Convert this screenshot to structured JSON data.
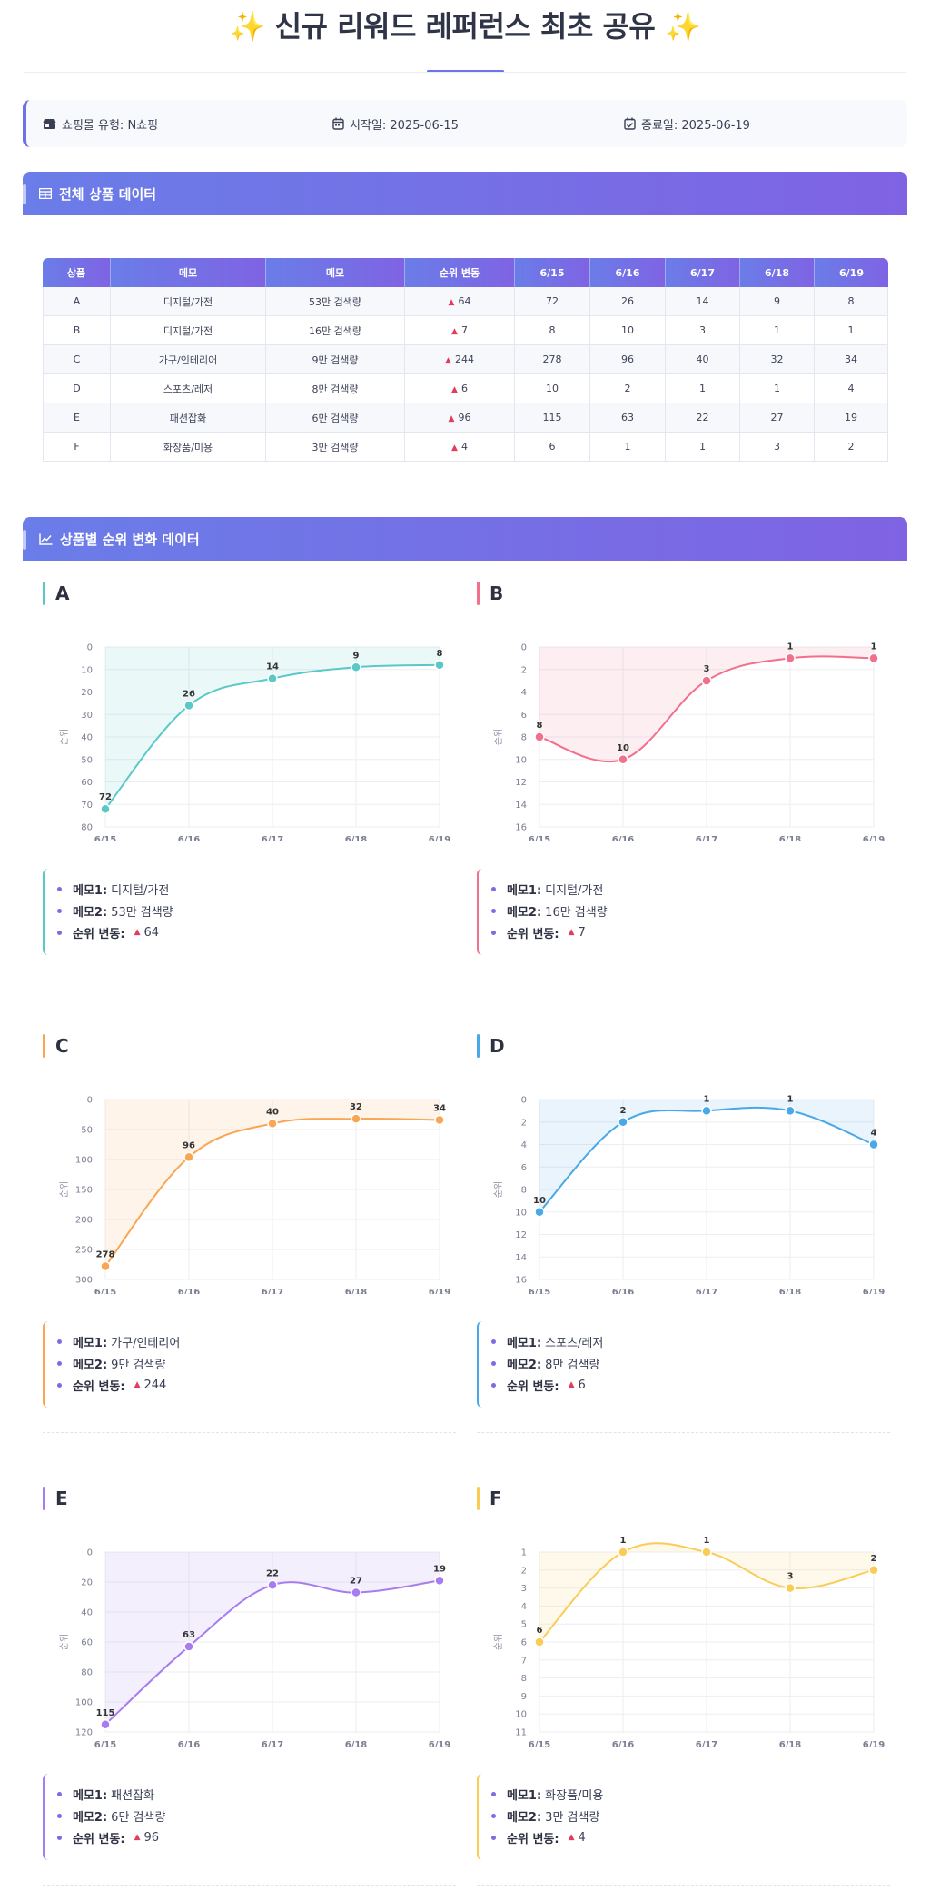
{
  "title": {
    "text": "신규 리워드 레퍼런스 최초 공유",
    "sparkle": "✨"
  },
  "info": {
    "mall_label": "쇼핑몰 유형: N쇼핑",
    "start_label": "시작일: 2025-06-15",
    "end_label": "종료일: 2025-06-19",
    "icons": [
      "store-icon",
      "calendar-icon",
      "calendar-check-icon"
    ]
  },
  "sections": {
    "table_title": "전체 상품 데이터",
    "charts_title": "상품별 순위 변화 데이터"
  },
  "table": {
    "headers": [
      "상품",
      "메모",
      "메모",
      "순위 변동",
      "6/15",
      "6/16",
      "6/17",
      "6/18",
      "6/19"
    ],
    "rows": [
      [
        "A",
        "디지털/가전",
        "53만 검색량",
        "64",
        "72",
        "26",
        "14",
        "9",
        "8"
      ],
      [
        "B",
        "디지털/가전",
        "16만 검색량",
        "7",
        "8",
        "10",
        "3",
        "1",
        "1"
      ],
      [
        "C",
        "가구/인테리어",
        "9만 검색량",
        "244",
        "278",
        "96",
        "40",
        "32",
        "34"
      ],
      [
        "D",
        "스포츠/레저",
        "8만 검색량",
        "6",
        "10",
        "2",
        "1",
        "1",
        "4"
      ],
      [
        "E",
        "패션잡화",
        "6만 검색량",
        "96",
        "115",
        "63",
        "22",
        "27",
        "19"
      ],
      [
        "F",
        "화장품/미용",
        "3만 검색량",
        "4",
        "6",
        "1",
        "1",
        "3",
        "2"
      ]
    ]
  },
  "memo_labels": {
    "memo1": "메모1:",
    "memo2": "메모2:",
    "change": "순위 변동:"
  },
  "chart_data": [
    {
      "type": "line",
      "name": "A",
      "color": "#5bc8c8",
      "x": [
        "6/15",
        "6/16",
        "6/17",
        "6/18",
        "6/19"
      ],
      "values": [
        72,
        26,
        14,
        9,
        8
      ],
      "ylabel": "순위",
      "ylim": [
        0,
        80
      ],
      "yticks": [
        0,
        10,
        20,
        30,
        40,
        50,
        60,
        70,
        80
      ],
      "y_reversed": true,
      "memo1": "디지털/가전",
      "memo2": "53만 검색량",
      "change": "64"
    },
    {
      "type": "line",
      "name": "B",
      "color": "#f2708c",
      "x": [
        "6/15",
        "6/16",
        "6/17",
        "6/18",
        "6/19"
      ],
      "values": [
        8,
        10,
        3,
        1,
        1
      ],
      "ylabel": "순위",
      "ylim": [
        0,
        16
      ],
      "yticks": [
        0,
        2,
        4,
        6,
        8,
        10,
        12,
        14,
        16
      ],
      "y_reversed": true,
      "memo1": "디지털/가전",
      "memo2": "16만 검색량",
      "change": "7"
    },
    {
      "type": "line",
      "name": "C",
      "color": "#f9a654",
      "x": [
        "6/15",
        "6/16",
        "6/17",
        "6/18",
        "6/19"
      ],
      "values": [
        278,
        96,
        40,
        32,
        34
      ],
      "ylabel": "순위",
      "ylim": [
        0,
        300
      ],
      "yticks": [
        0,
        50,
        100,
        150,
        200,
        250,
        300
      ],
      "y_reversed": true,
      "memo1": "가구/인테리어",
      "memo2": "9만 검색량",
      "change": "244"
    },
    {
      "type": "line",
      "name": "D",
      "color": "#48a8e8",
      "x": [
        "6/15",
        "6/16",
        "6/17",
        "6/18",
        "6/19"
      ],
      "values": [
        10,
        2,
        1,
        1,
        4
      ],
      "ylabel": "순위",
      "ylim": [
        0,
        16
      ],
      "yticks": [
        0,
        2,
        4,
        6,
        8,
        10,
        12,
        14,
        16
      ],
      "y_reversed": true,
      "memo1": "스포츠/레저",
      "memo2": "8만 검색량",
      "change": "6"
    },
    {
      "type": "line",
      "name": "E",
      "color": "#a77cf0",
      "x": [
        "6/15",
        "6/16",
        "6/17",
        "6/18",
        "6/19"
      ],
      "values": [
        115,
        63,
        22,
        27,
        19
      ],
      "ylabel": "순위",
      "ylim": [
        0,
        120
      ],
      "yticks": [
        0,
        20,
        40,
        60,
        80,
        100,
        120
      ],
      "y_reversed": true,
      "memo1": "패션잡화",
      "memo2": "6만 검색량",
      "change": "96"
    },
    {
      "type": "line",
      "name": "F",
      "color": "#f9cc55",
      "x": [
        "6/15",
        "6/16",
        "6/17",
        "6/18",
        "6/19"
      ],
      "values": [
        6,
        1,
        1,
        3,
        2
      ],
      "ylabel": "순위",
      "ylim": [
        1,
        11
      ],
      "yticks": [
        1,
        2,
        3,
        4,
        5,
        6,
        7,
        8,
        9,
        10,
        11
      ],
      "y_reversed": true,
      "memo1": "화장품/미용",
      "memo2": "3만 검색량",
      "change": "4"
    }
  ]
}
